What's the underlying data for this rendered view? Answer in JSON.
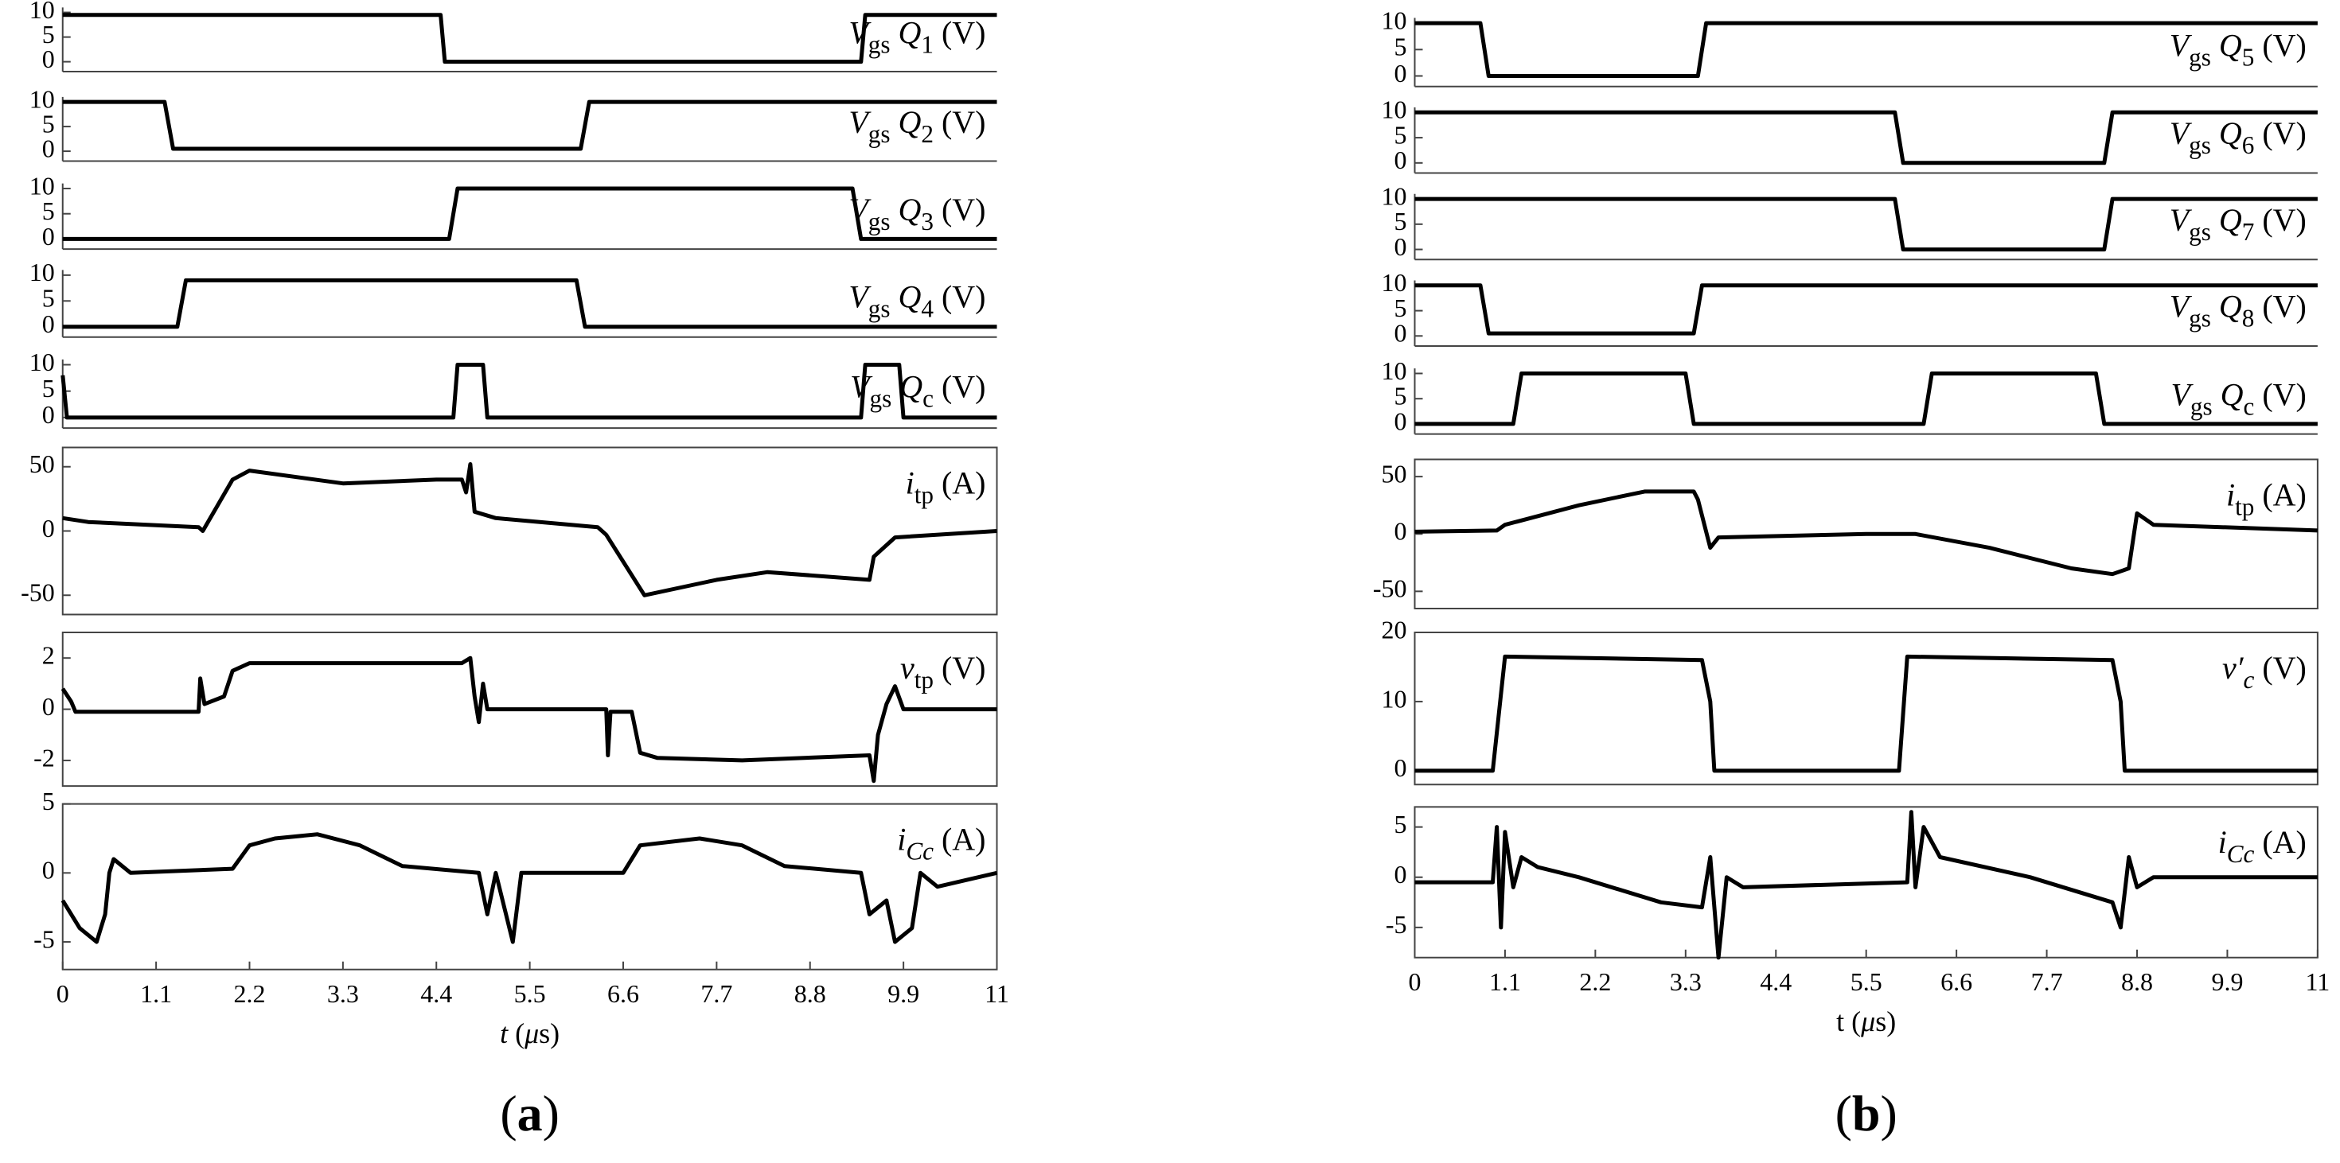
{
  "chart_data": [
    {
      "type": "line",
      "color": "#000000",
      "caption": [
        {
          "text": "("
        },
        {
          "text": "a",
          "bold": true
        },
        {
          "text": ")"
        }
      ],
      "xlabel": [
        {
          "text": "t",
          "italic": true
        },
        {
          "text": " ("
        },
        {
          "text": "μ",
          "italic": true
        },
        {
          "text": "s)"
        }
      ],
      "xlim": [
        0,
        11
      ],
      "xticks": [
        0,
        1.1,
        2.2,
        3.3,
        4.4,
        5.5,
        6.6,
        7.7,
        8.8,
        9.9,
        11
      ],
      "subplots": [
        {
          "label": [
            {
              "text": "V",
              "italic": true
            },
            {
              "text": "gs",
              "sub": true
            },
            {
              "text": " Q",
              "italic": true
            },
            {
              "text": "1",
              "sub": true
            },
            {
              "text": " (V)"
            }
          ],
          "ylim": [
            -2,
            11
          ],
          "yticks": [
            0,
            5,
            10
          ],
          "box": false,
          "x": [
            0,
            4.45,
            4.5,
            9.4,
            9.45,
            11
          ],
          "values": [
            9.5,
            9.5,
            0,
            0,
            9.5,
            9.5
          ]
        },
        {
          "label": [
            {
              "text": "V",
              "italic": true
            },
            {
              "text": "gs",
              "sub": true
            },
            {
              "text": " Q",
              "italic": true
            },
            {
              "text": "2",
              "sub": true
            },
            {
              "text": " (V)"
            }
          ],
          "ylim": [
            -2,
            11
          ],
          "yticks": [
            0,
            5,
            10
          ],
          "box": false,
          "x": [
            0,
            1.2,
            1.3,
            6.1,
            6.2,
            11
          ],
          "values": [
            10,
            10,
            0.5,
            0.5,
            10,
            10
          ]
        },
        {
          "label": [
            {
              "text": "V",
              "italic": true
            },
            {
              "text": "gs",
              "sub": true
            },
            {
              "text": " Q",
              "italic": true
            },
            {
              "text": "3",
              "sub": true
            },
            {
              "text": " (V)"
            }
          ],
          "ylim": [
            -2,
            11
          ],
          "yticks": [
            0,
            5,
            10
          ],
          "box": false,
          "x": [
            0,
            4.55,
            4.65,
            9.3,
            9.4,
            11
          ],
          "values": [
            0,
            0,
            10,
            10,
            0,
            0
          ]
        },
        {
          "label": [
            {
              "text": "V",
              "italic": true
            },
            {
              "text": "gs",
              "sub": true
            },
            {
              "text": " Q",
              "italic": true
            },
            {
              "text": "4",
              "sub": true
            },
            {
              "text": " (V)"
            }
          ],
          "ylim": [
            -2,
            11
          ],
          "yticks": [
            0,
            5,
            10
          ],
          "box": false,
          "x": [
            0,
            1.35,
            1.45,
            6.05,
            6.15,
            11
          ],
          "values": [
            0,
            0,
            9,
            9,
            0,
            0
          ]
        },
        {
          "label": [
            {
              "text": "V",
              "italic": true
            },
            {
              "text": "gs",
              "sub": true
            },
            {
              "text": " Q",
              "italic": true
            },
            {
              "text": "c",
              "sub": true
            },
            {
              "text": " (V)"
            }
          ],
          "ylim": [
            -2,
            11
          ],
          "yticks": [
            0,
            5,
            10
          ],
          "box": false,
          "x": [
            0,
            0.05,
            4.6,
            4.65,
            4.95,
            5.0,
            9.4,
            9.45,
            9.85,
            9.9,
            11
          ],
          "values": [
            8,
            0,
            0,
            10,
            10,
            0,
            0,
            10,
            10,
            0,
            0
          ]
        },
        {
          "label": [
            {
              "text": "i",
              "italic": true
            },
            {
              "text": "tp",
              "sub": true
            },
            {
              "text": " (A)"
            }
          ],
          "ylim": [
            -65,
            65
          ],
          "yticks": [
            -50,
            0,
            50
          ],
          "box": true,
          "x": [
            0,
            0.3,
            1.6,
            1.65,
            2.0,
            2.2,
            3.3,
            4.4,
            4.7,
            4.75,
            4.8,
            4.85,
            5.1,
            6.3,
            6.4,
            6.85,
            7.7,
            8.3,
            9.5,
            9.55,
            9.8,
            11
          ],
          "values": [
            10,
            7,
            3,
            0,
            40,
            47,
            37,
            40,
            40,
            30,
            52,
            15,
            10,
            3,
            -3,
            -50,
            -38,
            -32,
            -38,
            -20,
            -5,
            0
          ]
        },
        {
          "label": [
            {
              "text": "v",
              "italic": true
            },
            {
              "text": "tp",
              "sub": true
            },
            {
              "text": " (V)"
            }
          ],
          "ylim": [
            -3,
            3
          ],
          "yticks": [
            -2,
            0,
            2
          ],
          "box": true,
          "x": [
            0,
            0.1,
            0.15,
            1.6,
            1.62,
            1.67,
            1.9,
            2.0,
            2.2,
            3.3,
            4.7,
            4.8,
            4.85,
            4.9,
            4.95,
            5.0,
            6.4,
            6.42,
            6.45,
            6.7,
            6.8,
            7.0,
            8.0,
            9.5,
            9.55,
            9.6,
            9.7,
            9.8,
            9.9,
            11
          ],
          "values": [
            0.8,
            0.3,
            -0.1,
            -0.1,
            1.2,
            0.2,
            0.5,
            1.5,
            1.8,
            1.8,
            1.8,
            2,
            0.5,
            -0.5,
            1,
            0,
            0,
            -1.8,
            -0.1,
            -0.1,
            -1.7,
            -1.9,
            -2,
            -1.8,
            -2.8,
            -1,
            0.2,
            0.9,
            0,
            0
          ]
        },
        {
          "label": [
            {
              "text": "i",
              "italic": true
            },
            {
              "text": "Cc",
              "sub": true,
              "italic": true
            },
            {
              "text": " (A)"
            }
          ],
          "ylim": [
            -7,
            5
          ],
          "yticks": [
            -5,
            0,
            5
          ],
          "box": true,
          "x": [
            0,
            0.2,
            0.4,
            0.5,
            0.55,
            0.6,
            0.8,
            2.0,
            2.2,
            2.5,
            3.0,
            3.5,
            4.0,
            4.9,
            5.0,
            5.1,
            5.3,
            5.4,
            6.6,
            6.8,
            7.5,
            8.0,
            8.5,
            9.4,
            9.5,
            9.7,
            9.8,
            10.0,
            10.1,
            10.3,
            11
          ],
          "values": [
            -2,
            -4,
            -5,
            -3,
            0,
            1,
            0,
            0.3,
            2,
            2.5,
            2.8,
            2,
            0.5,
            0,
            -3,
            0,
            -5,
            0,
            0,
            2,
            2.5,
            2,
            0.5,
            0,
            -3,
            -2,
            -5,
            -4,
            0,
            -1,
            0
          ]
        }
      ]
    },
    {
      "type": "line",
      "color": "#000000",
      "caption": [
        {
          "text": "("
        },
        {
          "text": "b",
          "bold": true
        },
        {
          "text": ")"
        }
      ],
      "xlabel": [
        {
          "text": "t ("
        },
        {
          "text": "μ",
          "italic": true
        },
        {
          "text": "s)"
        }
      ],
      "xlim": [
        0,
        11
      ],
      "xticks": [
        0,
        1.1,
        2.2,
        3.3,
        4.4,
        5.5,
        6.6,
        7.7,
        8.8,
        9.9,
        11
      ],
      "subplots": [
        {
          "label": [
            {
              "text": "V",
              "italic": true
            },
            {
              "text": "gs",
              "sub": true
            },
            {
              "text": " Q",
              "italic": true
            },
            {
              "text": "5",
              "sub": true
            },
            {
              "text": " (V)"
            }
          ],
          "ylim": [
            -2,
            11
          ],
          "yticks": [
            0,
            5,
            10
          ],
          "box": false,
          "x": [
            0,
            0.8,
            0.9,
            3.45,
            3.55,
            11
          ],
          "values": [
            10,
            10,
            0,
            0,
            10,
            10
          ]
        },
        {
          "label": [
            {
              "text": "V",
              "italic": true
            },
            {
              "text": "gs",
              "sub": true
            },
            {
              "text": " Q",
              "italic": true
            },
            {
              "text": "6",
              "sub": true
            },
            {
              "text": " (V)"
            }
          ],
          "ylim": [
            -2,
            11
          ],
          "yticks": [
            0,
            5,
            10
          ],
          "box": false,
          "x": [
            0,
            5.85,
            5.95,
            8.4,
            8.5,
            11
          ],
          "values": [
            10,
            10,
            0,
            0,
            10,
            10
          ]
        },
        {
          "label": [
            {
              "text": "V",
              "italic": true
            },
            {
              "text": "gs",
              "sub": true
            },
            {
              "text": " Q",
              "italic": true
            },
            {
              "text": "7",
              "sub": true
            },
            {
              "text": " (V)"
            }
          ],
          "ylim": [
            -2,
            11
          ],
          "yticks": [
            0,
            5,
            10
          ],
          "box": false,
          "x": [
            0,
            5.85,
            5.95,
            8.4,
            8.5,
            11
          ],
          "values": [
            10,
            10,
            0,
            0,
            10,
            10
          ]
        },
        {
          "label": [
            {
              "text": "V",
              "italic": true
            },
            {
              "text": "gs",
              "sub": true
            },
            {
              "text": " Q",
              "italic": true
            },
            {
              "text": "8",
              "sub": true
            },
            {
              "text": " (V)"
            }
          ],
          "ylim": [
            -2,
            11
          ],
          "yticks": [
            0,
            5,
            10
          ],
          "box": false,
          "x": [
            0,
            0.8,
            0.9,
            3.4,
            3.5,
            11
          ],
          "values": [
            10,
            10,
            0.5,
            0.5,
            10,
            10
          ]
        },
        {
          "label": [
            {
              "text": "V",
              "italic": true
            },
            {
              "text": "gs",
              "sub": true
            },
            {
              "text": " Q",
              "italic": true
            },
            {
              "text": "c",
              "sub": true
            },
            {
              "text": " (V)"
            }
          ],
          "ylim": [
            -2,
            11
          ],
          "yticks": [
            0,
            5,
            10
          ],
          "box": false,
          "x": [
            0,
            1.2,
            1.3,
            3.3,
            3.4,
            6.2,
            6.3,
            8.3,
            8.4,
            11
          ],
          "values": [
            0,
            0,
            10,
            10,
            0,
            0,
            10,
            10,
            0,
            0
          ]
        },
        {
          "label": [
            {
              "text": "i",
              "italic": true
            },
            {
              "text": "tp",
              "sub": true
            },
            {
              "text": " (A)"
            }
          ],
          "ylim": [
            -65,
            65
          ],
          "yticks": [
            -50,
            0,
            50
          ],
          "box": true,
          "x": [
            0,
            1.0,
            1.1,
            2.0,
            2.8,
            3.4,
            3.45,
            3.6,
            3.7,
            5.5,
            6.1,
            7.0,
            8.0,
            8.5,
            8.7,
            8.8,
            9.0,
            11
          ],
          "values": [
            2,
            3,
            8,
            25,
            37,
            37,
            30,
            -12,
            -3,
            0,
            0,
            -12,
            -30,
            -35,
            -30,
            18,
            8,
            3
          ]
        },
        {
          "label": [
            {
              "text": "v′",
              "italic": true
            },
            {
              "text": "c",
              "sub": true,
              "italic": true
            },
            {
              "text": " (V)"
            }
          ],
          "ylim": [
            -2,
            20
          ],
          "yticks": [
            0,
            10,
            20
          ],
          "box": true,
          "x": [
            0,
            0.95,
            1.1,
            3.5,
            3.6,
            3.65,
            5.9,
            6.0,
            8.5,
            8.6,
            8.65,
            11
          ],
          "values": [
            0,
            0,
            16.5,
            16,
            10,
            0,
            0,
            16.5,
            16,
            10,
            0,
            0
          ]
        },
        {
          "label": [
            {
              "text": "i",
              "italic": true
            },
            {
              "text": "Cc",
              "sub": true,
              "italic": true
            },
            {
              "text": " (A)"
            }
          ],
          "ylim": [
            -8,
            7
          ],
          "yticks": [
            -5,
            0,
            5
          ],
          "box": true,
          "x": [
            0,
            0.95,
            1.0,
            1.05,
            1.1,
            1.2,
            1.3,
            1.5,
            2.0,
            3.0,
            3.5,
            3.6,
            3.7,
            3.8,
            4.0,
            6.0,
            6.05,
            6.1,
            6.2,
            6.4,
            7.5,
            8.5,
            8.6,
            8.7,
            8.8,
            9.0,
            11
          ],
          "values": [
            -0.5,
            -0.5,
            5,
            -5,
            4.5,
            -1,
            2,
            1,
            0,
            -2.5,
            -3,
            2,
            -8,
            0,
            -1,
            -0.5,
            6.5,
            -1,
            5,
            2,
            0,
            -2.5,
            -5,
            2,
            -1,
            0,
            0
          ]
        }
      ]
    }
  ]
}
